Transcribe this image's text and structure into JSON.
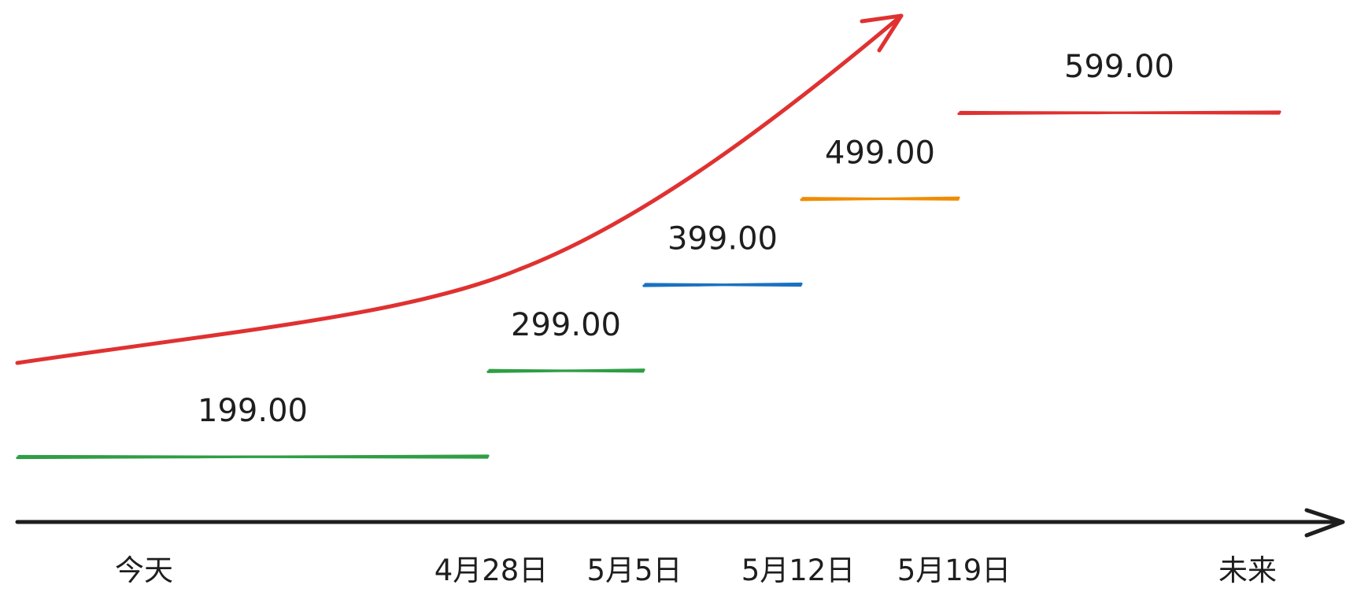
{
  "chart_data": {
    "type": "line",
    "title": "",
    "xlabel": "",
    "ylabel": "",
    "x_ticks": [
      "今天",
      "4月28日",
      "5月5日",
      "5月12日",
      "5月19日",
      "未来"
    ],
    "steps": [
      {
        "from": "今天",
        "to": "4月28日",
        "value": 199,
        "label": "199.00",
        "color": "#2f9e44"
      },
      {
        "from": "4月28日",
        "to": "5月5日",
        "value": 299,
        "label": "299.00",
        "color": "#2f9e44"
      },
      {
        "from": "5月5日",
        "to": "5月12日",
        "value": 399,
        "label": "399.00",
        "color": "#1971c2"
      },
      {
        "from": "5月12日",
        "to": "5月19日",
        "value": 499,
        "label": "499.00",
        "color": "#f08c00"
      },
      {
        "from": "5月19日",
        "to": "未来",
        "value": 599,
        "label": "599.00",
        "color": "#e03131"
      }
    ],
    "trend": {
      "direction": "up",
      "color": "#e03131"
    },
    "axis_color": "#1e1e1e",
    "grid": false,
    "legend": "none"
  }
}
